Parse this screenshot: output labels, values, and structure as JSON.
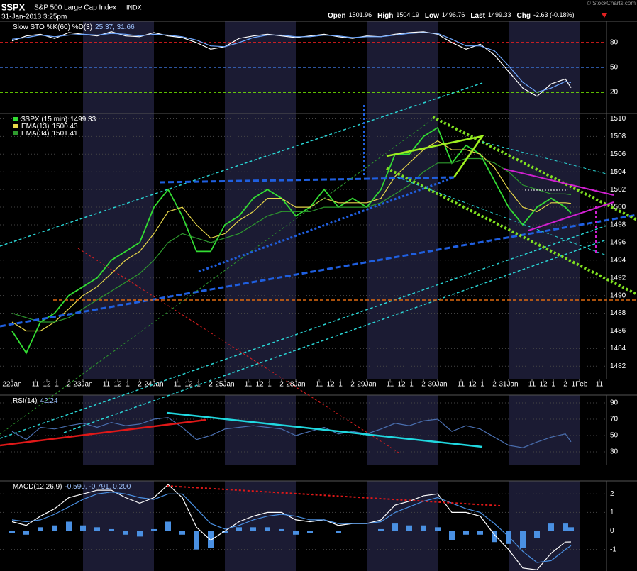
{
  "header": {
    "symbol": "$SPX",
    "name": "S&P 500 Large Cap Index",
    "exchange": "INDX",
    "datetime": "31-Jan-2013 3:25pm",
    "watermark": "© StockCharts.com",
    "quote": [
      {
        "label": "Open",
        "value": "1501.96"
      },
      {
        "label": "High",
        "value": "1504.19"
      },
      {
        "label": "Low",
        "value": "1496.76"
      },
      {
        "label": "Last",
        "value": "1499.33"
      },
      {
        "label": "Chg",
        "value": "-2.63 (-0.18%)"
      }
    ]
  },
  "chart_data": [
    {
      "type": "line",
      "title": "Slow STO %K(60) %D(3)",
      "title_values": "25.37, 31.66",
      "x": [
        0,
        0.2,
        0.4,
        0.6,
        0.8,
        1.0,
        1.2,
        1.4,
        1.6,
        1.8,
        2.0,
        2.2,
        2.4,
        2.6,
        2.8,
        3.0,
        3.2,
        3.4,
        3.6,
        3.8,
        4.0,
        4.2,
        4.4,
        4.6,
        4.8,
        5.0,
        5.2,
        5.4,
        5.6,
        5.8,
        6.0,
        6.2,
        6.4,
        6.6,
        6.8,
        7.0,
        7.2,
        7.4,
        7.6,
        7.8,
        7.88
      ],
      "xlim": [
        -0.17,
        8.38
      ],
      "ylim": [
        -5.7,
        105.7
      ],
      "yticks": [
        20,
        50,
        80
      ],
      "tick_line_colors": [
        "#7cfc00",
        "#3a6fd0",
        "#ff2020"
      ],
      "series": [
        {
          "color": "#ffffff",
          "values": [
            82,
            88,
            90,
            85,
            92,
            90,
            88,
            93,
            88,
            87,
            92,
            88,
            86,
            80,
            72,
            75,
            85,
            88,
            90,
            88,
            86,
            88,
            90,
            87,
            85,
            88,
            87,
            90,
            92,
            93,
            90,
            80,
            72,
            78,
            65,
            45,
            25,
            15,
            30,
            36,
            25.37
          ]
        },
        {
          "color": "#6fa8ff",
          "values": [
            84,
            86,
            89,
            87,
            89,
            90,
            89,
            91,
            90,
            88,
            90,
            89,
            87,
            83,
            76,
            75,
            80,
            86,
            89,
            89,
            87,
            87,
            89,
            88,
            86,
            87,
            87,
            89,
            91,
            92,
            91,
            84,
            76,
            76,
            70,
            52,
            32,
            20,
            25,
            33,
            31.66
          ]
        }
      ]
    },
    {
      "type": "line",
      "x": [
        0,
        0.2,
        0.4,
        0.6,
        0.8,
        1.0,
        1.2,
        1.4,
        1.6,
        1.8,
        2.0,
        2.2,
        2.4,
        2.6,
        2.8,
        3.0,
        3.2,
        3.4,
        3.6,
        3.8,
        4.0,
        4.2,
        4.4,
        4.6,
        4.8,
        5.0,
        5.2,
        5.4,
        5.6,
        5.8,
        6.0,
        6.2,
        6.4,
        6.6,
        6.8,
        7.0,
        7.2,
        7.4,
        7.6,
        7.8,
        7.88
      ],
      "xlim": [
        -0.17,
        8.38
      ],
      "ylim": [
        1480.5,
        1510.6
      ],
      "yticks": [
        1482,
        1484,
        1486,
        1488,
        1490,
        1492,
        1494,
        1496,
        1498,
        1500,
        1502,
        1504,
        1506,
        1508,
        1510
      ],
      "xticks": [
        {
          "value": 0,
          "label": "22Jan"
        },
        {
          "value": 0.33,
          "label": "11"
        },
        {
          "value": 0.49,
          "label": "12"
        },
        {
          "value": 0.63,
          "label": "1"
        },
        {
          "value": 0.8,
          "label": "2"
        },
        {
          "value": 1,
          "label": "23Jan"
        },
        {
          "value": 1.33,
          "label": "11"
        },
        {
          "value": 1.49,
          "label": "12"
        },
        {
          "value": 1.63,
          "label": "1"
        },
        {
          "value": 1.8,
          "label": "2"
        },
        {
          "value": 2,
          "label": "24Jan"
        },
        {
          "value": 2.33,
          "label": "11"
        },
        {
          "value": 2.49,
          "label": "12"
        },
        {
          "value": 2.63,
          "label": "1"
        },
        {
          "value": 2.8,
          "label": "2"
        },
        {
          "value": 3,
          "label": "25Jan"
        },
        {
          "value": 3.33,
          "label": "11"
        },
        {
          "value": 3.49,
          "label": "12"
        },
        {
          "value": 3.63,
          "label": "1"
        },
        {
          "value": 3.8,
          "label": "2"
        },
        {
          "value": 4,
          "label": "28Jan"
        },
        {
          "value": 4.33,
          "label": "11"
        },
        {
          "value": 4.49,
          "label": "12"
        },
        {
          "value": 4.63,
          "label": "1"
        },
        {
          "value": 4.8,
          "label": "2"
        },
        {
          "value": 5,
          "label": "29Jan"
        },
        {
          "value": 5.33,
          "label": "11"
        },
        {
          "value": 5.49,
          "label": "12"
        },
        {
          "value": 5.63,
          "label": "1"
        },
        {
          "value": 5.8,
          "label": "2"
        },
        {
          "value": 6,
          "label": "30Jan"
        },
        {
          "value": 6.33,
          "label": "11"
        },
        {
          "value": 6.49,
          "label": "12"
        },
        {
          "value": 6.63,
          "label": "1"
        },
        {
          "value": 6.8,
          "label": "2"
        },
        {
          "value": 7,
          "label": "31Jan"
        },
        {
          "value": 7.33,
          "label": "11"
        },
        {
          "value": 7.49,
          "label": "12"
        },
        {
          "value": 7.63,
          "label": "1"
        },
        {
          "value": 7.8,
          "label": "2"
        },
        {
          "value": 8,
          "label": "1Feb"
        },
        {
          "value": 8.28,
          "label": "11"
        }
      ],
      "series": [
        {
          "name": "$SPX (15 min)",
          "label_value": "1499.33",
          "color": "#33dd33",
          "values": [
            1486,
            1483.5,
            1487,
            1488,
            1490,
            1491,
            1492,
            1494,
            1495,
            1496,
            1500,
            1502,
            1499,
            1495,
            1495,
            1498,
            1499,
            1501,
            1502,
            1501,
            1499,
            1500,
            1502,
            1500,
            1501,
            1500,
            1502,
            1506,
            1506,
            1508,
            1509,
            1505,
            1507,
            1506,
            1503,
            1500,
            1498,
            1500,
            1501,
            1500,
            1499.33
          ]
        },
        {
          "name": "EMA(13)",
          "label_value": "1500.43",
          "color": "#e8d84a",
          "values": [
            1487,
            1486,
            1486,
            1487,
            1488.5,
            1490,
            1491,
            1492.5,
            1494,
            1495,
            1497,
            1499.5,
            1500,
            1498,
            1496.5,
            1497,
            1498.5,
            1499.5,
            1501,
            1501,
            1500,
            1500,
            1501,
            1500.5,
            1500.5,
            1500.5,
            1501,
            1503.5,
            1505,
            1506.5,
            1507.5,
            1506.5,
            1506.5,
            1506,
            1504.5,
            1502,
            1500,
            1499.5,
            1500.5,
            1500.5,
            1500.43
          ]
        },
        {
          "name": "EMA(34)",
          "label_value": "1501.41",
          "color": "#2e9b2e",
          "values": [
            1488,
            1487.5,
            1487,
            1487,
            1487.5,
            1488.5,
            1489.5,
            1490.5,
            1491.5,
            1492.5,
            1494,
            1496,
            1497,
            1496.5,
            1496,
            1496.5,
            1497,
            1498,
            1499,
            1499.5,
            1499.5,
            1499.5,
            1500,
            1500,
            1500,
            1500,
            1500.5,
            1501.5,
            1502.5,
            1504,
            1505,
            1505,
            1505.5,
            1505.5,
            1505,
            1504,
            1502.5,
            1502,
            1501.5,
            1501.5,
            1501.41
          ]
        }
      ]
    },
    {
      "type": "line",
      "title": "RSI(14)",
      "title_values": "42.24",
      "x": [
        0,
        0.2,
        0.4,
        0.6,
        0.8,
        1.0,
        1.2,
        1.4,
        1.6,
        1.8,
        2.0,
        2.2,
        2.4,
        2.6,
        2.8,
        3.0,
        3.2,
        3.4,
        3.6,
        3.8,
        4.0,
        4.2,
        4.4,
        4.6,
        4.8,
        5.0,
        5.2,
        5.4,
        5.6,
        5.8,
        6.0,
        6.2,
        6.4,
        6.6,
        6.8,
        7.0,
        7.2,
        7.4,
        7.6,
        7.8,
        7.88
      ],
      "xlim": [
        -0.17,
        8.38
      ],
      "ylim": [
        14.3,
        99.6
      ],
      "yticks": [
        30,
        50,
        70,
        90
      ],
      "series": [
        {
          "color": "#4a6fb0",
          "values": [
            55,
            45,
            60,
            58,
            62,
            65,
            60,
            66,
            62,
            64,
            70,
            72,
            60,
            45,
            50,
            58,
            60,
            62,
            60,
            58,
            50,
            55,
            60,
            52,
            55,
            52,
            58,
            65,
            62,
            68,
            70,
            55,
            62,
            58,
            48,
            38,
            35,
            42,
            48,
            52,
            42.24
          ]
        }
      ]
    },
    {
      "type": "line",
      "title": "MACD(12,26,9)",
      "title_values": "-0.590, -0.791, 0.200",
      "x": [
        0,
        0.2,
        0.4,
        0.6,
        0.8,
        1.0,
        1.2,
        1.4,
        1.6,
        1.8,
        2.0,
        2.2,
        2.4,
        2.6,
        2.8,
        3.0,
        3.2,
        3.4,
        3.6,
        3.8,
        4.0,
        4.2,
        4.4,
        4.6,
        4.8,
        5.0,
        5.2,
        5.4,
        5.6,
        5.8,
        6.0,
        6.2,
        6.4,
        6.6,
        6.8,
        7.0,
        7.2,
        7.4,
        7.6,
        7.8,
        7.88
      ],
      "xlim": [
        -0.17,
        8.38
      ],
      "ylim": [
        -2.16,
        2.7
      ],
      "yticks": [
        -1,
        0,
        1,
        2
      ],
      "series": [
        {
          "mark": "bar",
          "color": "#4a90e2",
          "values": [
            -0.1,
            -0.2,
            0.2,
            0.3,
            0.5,
            0.3,
            0.2,
            0.1,
            -0.2,
            -0.3,
            0.1,
            0.5,
            -0.2,
            -1.0,
            -0.9,
            -0.1,
            0.2,
            0.2,
            0.2,
            0.1,
            -0.2,
            -0.1,
            0,
            -0.1,
            0,
            0,
            0.1,
            0.4,
            0.3,
            0.3,
            0.2,
            -0.5,
            -0.2,
            -0.2,
            -0.6,
            -0.7,
            -0.9,
            -0.4,
            0.4,
            0.4,
            0.2
          ]
        },
        {
          "color": "#ffffff",
          "values": [
            0.5,
            0.3,
            0.8,
            1.2,
            1.8,
            2.0,
            2.2,
            2.2,
            1.8,
            1.5,
            1.8,
            2.5,
            1.8,
            0.2,
            -0.5,
            0,
            0.5,
            0.8,
            1.0,
            1.0,
            0.6,
            0.5,
            0.6,
            0.3,
            0.4,
            0.4,
            0.6,
            1.4,
            1.6,
            1.9,
            2.0,
            1.0,
            1.0,
            0.8,
            -0.2,
            -1.0,
            -2.0,
            -2.1,
            -1.2,
            -0.6,
            -0.59
          ]
        },
        {
          "color": "#4a90e2",
          "values": [
            0.6,
            0.5,
            0.6,
            0.9,
            1.3,
            1.7,
            2.0,
            2.1,
            2.0,
            1.8,
            1.7,
            2.0,
            2.0,
            1.2,
            0.4,
            0.1,
            0.3,
            0.6,
            0.8,
            0.9,
            0.8,
            0.6,
            0.6,
            0.4,
            0.4,
            0.4,
            0.5,
            1.0,
            1.3,
            1.6,
            1.8,
            1.5,
            1.2,
            1.0,
            0.4,
            -0.3,
            -1.1,
            -1.7,
            -1.6,
            -1.0,
            -0.79
          ]
        }
      ]
    }
  ]
}
